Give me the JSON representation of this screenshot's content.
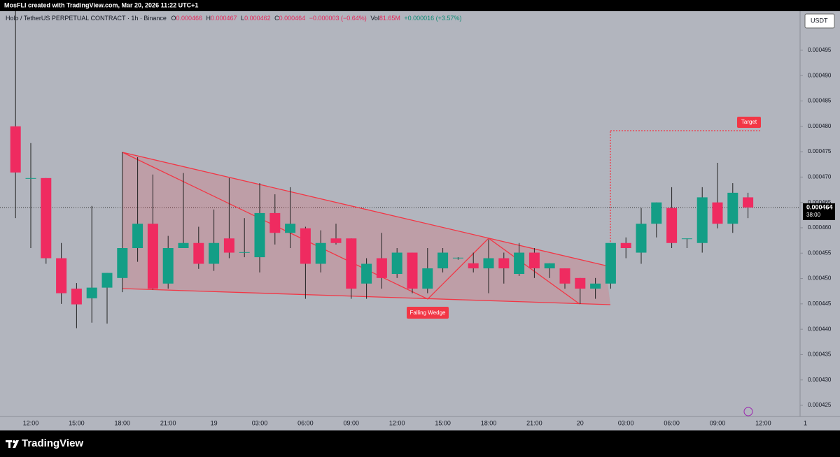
{
  "banner": "MosFLI created with TradingView.com, Mar 20, 2026 11:22 UTC+1",
  "brand": "TradingView",
  "chart_data": {
    "type": "candlestick",
    "legend": {
      "symbol": "Holo / TetherUS PERPETUAL CONTRACT · 1h · Binance",
      "ohlc": [
        {
          "label": "O",
          "value": "0.000466"
        },
        {
          "label": "H",
          "value": "0.000467"
        },
        {
          "label": "L",
          "value": "0.000462"
        },
        {
          "label": "C",
          "value": "0.000464"
        }
      ],
      "change": "−0.000003 (−0.64%)",
      "volume_label": "Vol",
      "volume": "81.65M",
      "volume_change": "+0.000016 (+3.57%)"
    },
    "currency": "USDT",
    "categories": [
      null,
      "12:00",
      null,
      null,
      "15:00",
      null,
      null,
      "18:00",
      null,
      null,
      "21:00",
      null,
      null,
      "19",
      null,
      null,
      "03:00",
      null,
      null,
      "06:00",
      null,
      null,
      "09:00",
      null,
      null,
      "12:00",
      null,
      null,
      "15:00",
      null,
      null,
      "18:00",
      null,
      null,
      "21:00",
      null,
      null,
      "20",
      null,
      null,
      "03:00",
      null,
      null,
      "06:00",
      null,
      null,
      "09:00",
      null,
      null,
      "12:00"
    ],
    "x_edge_label": "1",
    "open": [
      0.00048,
      0.0004697,
      0.0004698,
      0.000454,
      0.000448,
      0.0004461,
      0.0004482,
      0.0004501,
      0.000456,
      0.0004608,
      0.000449,
      0.000456,
      0.000457,
      0.0004529,
      0.0004579,
      0.0004551,
      0.0004542,
      0.0004629,
      0.000459,
      0.0004599,
      0.0004529,
      0.0004579,
      0.0004579,
      0.000449,
      0.000454,
      0.0004509,
      0.0004551,
      0.000448,
      0.000452,
      0.000454,
      0.000453,
      0.000452,
      0.000454,
      0.0004509,
      0.0004551,
      0.000452,
      0.000452,
      0.0004501,
      0.000448,
      0.000449,
      0.000457,
      0.0004551,
      0.0004608,
      0.0004639,
      0.0004578,
      0.000457,
      0.000465,
      0.0004608,
      0.000466,
      null
    ],
    "high": [
      0.0005027,
      0.0004767,
      0.0004698,
      0.000457,
      0.0004491,
      0.0004643,
      0.0004511,
      0.0004749,
      0.0004739,
      0.0004705,
      0.0004584,
      0.0004708,
      0.0004602,
      0.0004636,
      0.0004698,
      0.0004619,
      0.0004688,
      0.0004666,
      0.000468,
      0.0004602,
      0.0004595,
      0.0004608,
      0.0004579,
      0.000454,
      0.000459,
      0.000456,
      0.0004551,
      0.000456,
      0.000456,
      0.0004542,
      0.0004551,
      0.0004577,
      0.0004551,
      0.000457,
      0.000456,
      0.000453,
      0.000452,
      0.0004501,
      0.0004501,
      0.000457,
      0.0004581,
      0.0004639,
      0.000465,
      0.000468,
      0.0004579,
      0.000468,
      0.0004728,
      0.0004688,
      0.0004669,
      null
    ],
    "low": [
      0.0004619,
      0.000456,
      0.0004529,
      0.000445,
      0.0004402,
      0.0004413,
      0.0004411,
      0.0004473,
      0.0004533,
      0.0004478,
      0.000448,
      0.000456,
      0.0004519,
      0.0004515,
      0.000454,
      0.0004542,
      0.0004512,
      0.0004567,
      0.000456,
      0.000446,
      0.0004512,
      0.0004567,
      0.000446,
      0.000446,
      0.000448,
      0.0004501,
      0.0004471,
      0.0004471,
      0.0004512,
      0.0004537,
      0.0004512,
      0.0004471,
      0.000449,
      0.0004505,
      0.0004501,
      0.0004501,
      0.000448,
      0.000445,
      0.000446,
      0.000448,
      0.000454,
      0.0004529,
      0.0004581,
      0.000456,
      0.000456,
      0.0004551,
      0.0004599,
      0.000459,
      0.0004619,
      null
    ],
    "close": [
      0.0004709,
      0.0004698,
      0.000454,
      0.0004471,
      0.0004449,
      0.0004482,
      0.0004511,
      0.000456,
      0.0004608,
      0.000448,
      0.000456,
      0.000457,
      0.0004529,
      0.000457,
      0.0004551,
      0.0004552,
      0.0004629,
      0.000459,
      0.0004608,
      0.0004529,
      0.000457,
      0.000457,
      0.000448,
      0.0004529,
      0.0004501,
      0.0004551,
      0.000448,
      0.000452,
      0.0004551,
      0.0004541,
      0.000452,
      0.000454,
      0.000452,
      0.0004551,
      0.000452,
      0.000453,
      0.000449,
      0.000448,
      0.000449,
      0.000457,
      0.000456,
      0.0004608,
      0.000465,
      0.000457,
      0.0004579,
      0.000466,
      0.0004608,
      0.0004669,
      0.000464,
      null
    ],
    "up_color": "#139e86",
    "down_color": "#ef2b60",
    "ylim": [
      0.0004228,
      0.0005027
    ],
    "yticks": [
      {
        "value": 0.000425,
        "label": "0.000425"
      },
      {
        "value": 0.00043,
        "label": "0.000430"
      },
      {
        "value": 0.000435,
        "label": "0.000435"
      },
      {
        "value": 0.00044,
        "label": "0.000440"
      },
      {
        "value": 0.000445,
        "label": "0.000445"
      },
      {
        "value": 0.00045,
        "label": "0.000450"
      },
      {
        "value": 0.000455,
        "label": "0.000455"
      },
      {
        "value": 0.00046,
        "label": "0.000460"
      },
      {
        "value": 0.000465,
        "label": "0.000465"
      },
      {
        "value": 0.00047,
        "label": "0.000470"
      },
      {
        "value": 0.000475,
        "label": "0.000475"
      },
      {
        "value": 0.00048,
        "label": "0.000480"
      },
      {
        "value": 0.000485,
        "label": "0.000485"
      },
      {
        "value": 0.00049,
        "label": "0.000490"
      },
      {
        "value": 0.000495,
        "label": "0.000495"
      }
    ],
    "last_price": {
      "value": 0.000464,
      "label": "0.000464"
    },
    "countdown": "38:00",
    "annotations": [
      "Falling Wedge",
      "Target"
    ]
  }
}
